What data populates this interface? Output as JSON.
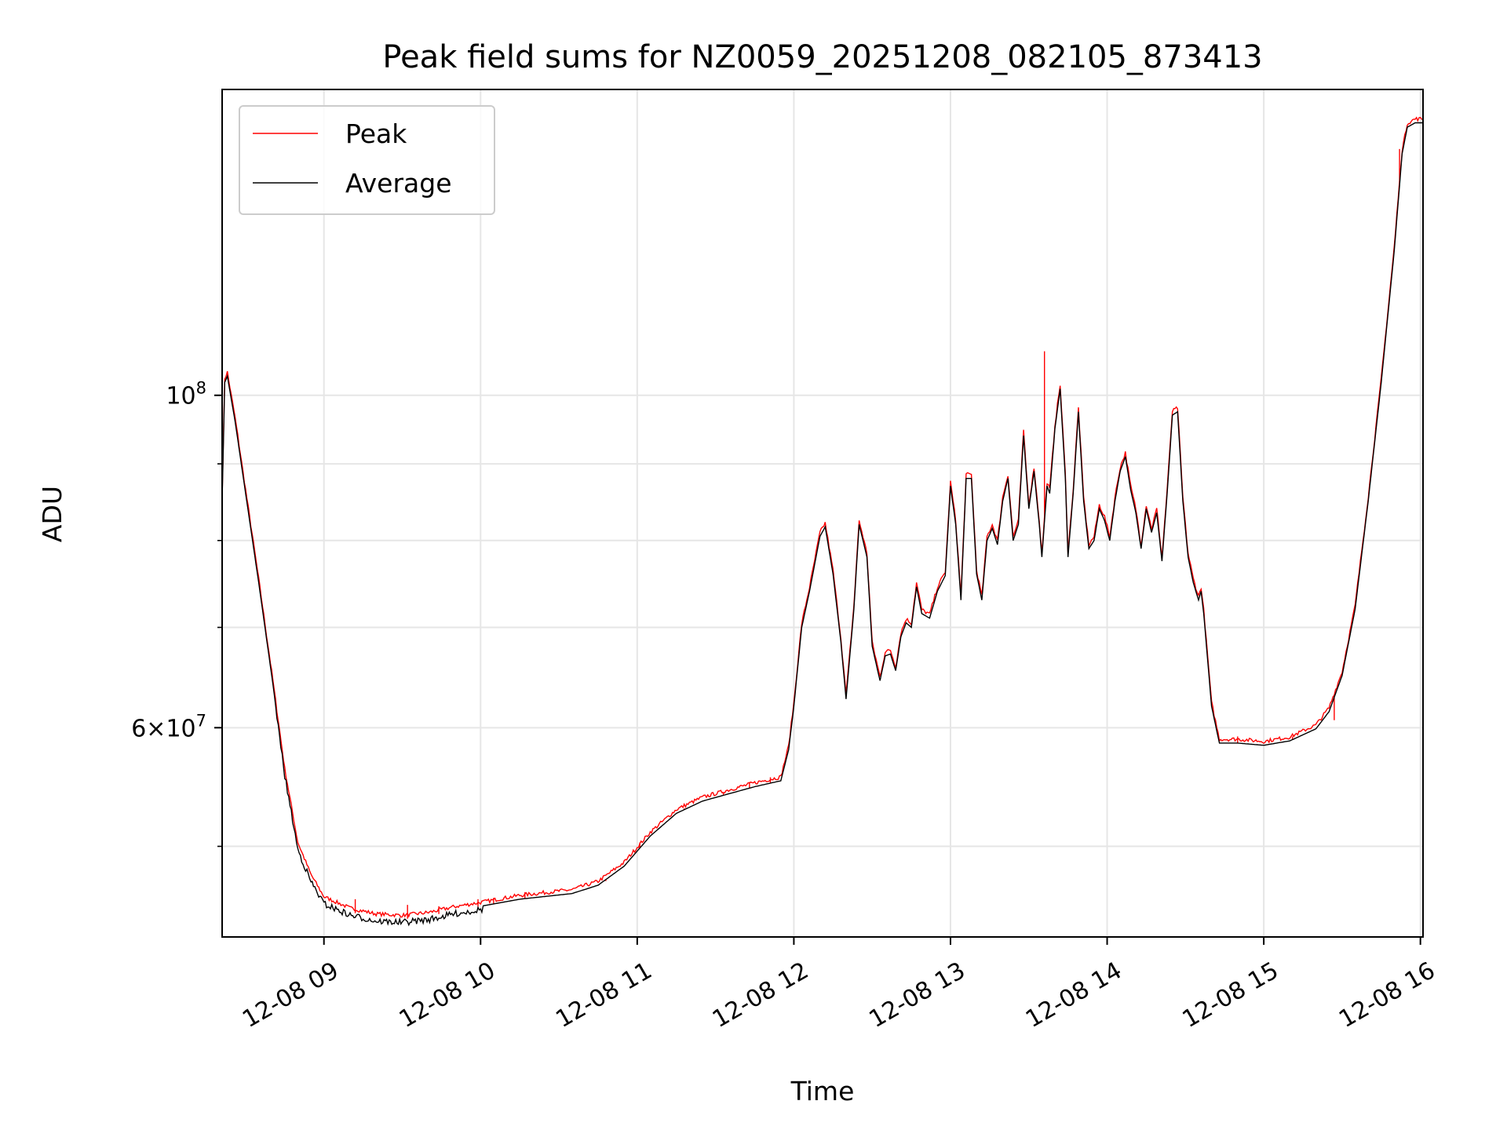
{
  "chart_data": {
    "type": "line",
    "title": "Peak field sums for NZ0059_20251208_082105_873413",
    "xlabel": "Time",
    "ylabel": "ADU",
    "x_range": [
      "12-08 08:21",
      "12-08 16:01"
    ],
    "ylim": [
      43500000,
      160000000
    ],
    "yscale": "log",
    "grid": true,
    "legend_position": "top-left",
    "x_ticks": [
      "12-08 09",
      "12-08 10",
      "12-08 11",
      "12-08 12",
      "12-08 13",
      "12-08 14",
      "12-08 15",
      "12-08 16"
    ],
    "y_major_ticks": [
      {
        "value": 100000000,
        "mantissa": "",
        "base": "10",
        "exp": "8"
      },
      {
        "value": 60000000,
        "mantissa": "6",
        "base": "10",
        "exp": "7"
      }
    ],
    "y_minor_ticks": [
      50000000,
      70000000,
      80000000,
      90000000
    ],
    "series": [
      {
        "name": "Peak",
        "color": "#ff0000",
        "spikes": [
          [
            "12-08 09:12",
            46100000
          ],
          [
            "12-08 09:32",
            45700000
          ],
          [
            "12-08 09:44",
            45600000
          ],
          [
            "12-08 09:59",
            46100000
          ],
          [
            "12-08 10:05",
            46200000
          ],
          [
            "12-08 10:17",
            46600000
          ],
          [
            "12-08 10:37",
            46600000
          ],
          [
            "12-08 10:48",
            47400000
          ],
          [
            "12-08 11:01",
            50300000
          ],
          [
            "12-08 11:08",
            51400000
          ],
          [
            "12-08 11:18",
            53000000
          ],
          [
            "12-08 11:33",
            54300000
          ],
          [
            "12-08 11:43",
            55200000
          ],
          [
            "12-08 11:51",
            55600000
          ],
          [
            "12-08 13:36",
            107000000
          ],
          [
            "12-08 14:50",
            59200000
          ],
          [
            "12-08 15:11",
            59200000
          ],
          [
            "12-08 15:27",
            60700000
          ],
          [
            "12-08 15:52",
            146000000
          ]
        ]
      },
      {
        "name": "Average",
        "color": "#000000",
        "points": [
          [
            "12-08 08:21",
            85000000
          ],
          [
            "12-08 08:22",
            102000000
          ],
          [
            "12-08 08:23",
            103000000
          ],
          [
            "12-08 08:26",
            96000000
          ],
          [
            "12-08 08:30",
            86000000
          ],
          [
            "12-08 08:35",
            75000000
          ],
          [
            "12-08 08:40",
            65000000
          ],
          [
            "12-08 08:45",
            56000000
          ],
          [
            "12-08 08:50",
            50000000
          ],
          [
            "12-08 08:55",
            47600000
          ],
          [
            "12-08 09:00",
            46000000
          ],
          [
            "12-08 09:10",
            45200000
          ],
          [
            "12-08 09:20",
            44800000
          ],
          [
            "12-08 09:30",
            44700000
          ],
          [
            "12-08 09:40",
            44900000
          ],
          [
            "12-08 09:50",
            45300000
          ],
          [
            "12-08 10:00",
            45600000
          ],
          [
            "12-08 10:15",
            46100000
          ],
          [
            "12-08 10:35",
            46500000
          ],
          [
            "12-08 10:45",
            47100000
          ],
          [
            "12-08 10:55",
            48500000
          ],
          [
            "12-08 11:05",
            50800000
          ],
          [
            "12-08 11:15",
            52600000
          ],
          [
            "12-08 11:25",
            53600000
          ],
          [
            "12-08 11:35",
            54200000
          ],
          [
            "12-08 11:45",
            54800000
          ],
          [
            "12-08 11:55",
            55300000
          ],
          [
            "12-08 11:58",
            58000000
          ],
          [
            "12-08 12:00",
            62000000
          ],
          [
            "12-08 12:03",
            70000000
          ],
          [
            "12-08 12:06",
            74000000
          ],
          [
            "12-08 12:10",
            80500000
          ],
          [
            "12-08 12:12",
            81700000
          ],
          [
            "12-08 12:15",
            76000000
          ],
          [
            "12-08 12:18",
            68500000
          ],
          [
            "12-08 12:20",
            62700000
          ],
          [
            "12-08 12:23",
            72000000
          ],
          [
            "12-08 12:25",
            82000000
          ],
          [
            "12-08 12:28",
            78000000
          ],
          [
            "12-08 12:30",
            68000000
          ],
          [
            "12-08 12:33",
            64500000
          ],
          [
            "12-08 12:35",
            67000000
          ],
          [
            "12-08 12:37",
            67200000
          ],
          [
            "12-08 12:39",
            65500000
          ],
          [
            "12-08 12:41",
            69000000
          ],
          [
            "12-08 12:43",
            70500000
          ],
          [
            "12-08 12:45",
            70000000
          ],
          [
            "12-08 12:47",
            74500000
          ],
          [
            "12-08 12:49",
            71500000
          ],
          [
            "12-08 12:52",
            71000000
          ],
          [
            "12-08 12:55",
            74000000
          ],
          [
            "12-08 12:58",
            75800000
          ],
          [
            "12-08 13:00",
            87000000
          ],
          [
            "12-08 13:02",
            82000000
          ],
          [
            "12-08 13:04",
            73000000
          ],
          [
            "12-08 13:06",
            88000000
          ],
          [
            "12-08 13:08",
            88000000
          ],
          [
            "12-08 13:10",
            76000000
          ],
          [
            "12-08 13:12",
            73000000
          ],
          [
            "12-08 13:14",
            80000000
          ],
          [
            "12-08 13:16",
            81500000
          ],
          [
            "12-08 13:18",
            79500000
          ],
          [
            "12-08 13:20",
            85000000
          ],
          [
            "12-08 13:22",
            88000000
          ],
          [
            "12-08 13:24",
            80000000
          ],
          [
            "12-08 13:26",
            82000000
          ],
          [
            "12-08 13:28",
            94000000
          ],
          [
            "12-08 13:30",
            84000000
          ],
          [
            "12-08 13:32",
            89000000
          ],
          [
            "12-08 13:34",
            82000000
          ],
          [
            "12-08 13:35",
            78000000
          ],
          [
            "12-08 13:37",
            87000000
          ],
          [
            "12-08 13:38",
            86000000
          ],
          [
            "12-08 13:40",
            95000000
          ],
          [
            "12-08 13:42",
            101000000
          ],
          [
            "12-08 13:44",
            88000000
          ],
          [
            "12-08 13:45",
            78000000
          ],
          [
            "12-08 13:47",
            86000000
          ],
          [
            "12-08 13:49",
            97500000
          ],
          [
            "12-08 13:51",
            85000000
          ],
          [
            "12-08 13:53",
            79000000
          ],
          [
            "12-08 13:55",
            80000000
          ],
          [
            "12-08 13:57",
            84000000
          ],
          [
            "12-08 13:59",
            82500000
          ],
          [
            "12-08 14:01",
            80000000
          ],
          [
            "12-08 14:03",
            85000000
          ],
          [
            "12-08 14:05",
            89000000
          ],
          [
            "12-08 14:07",
            91000000
          ],
          [
            "12-08 14:09",
            86500000
          ],
          [
            "12-08 14:11",
            83500000
          ],
          [
            "12-08 14:13",
            79000000
          ],
          [
            "12-08 14:15",
            84000000
          ],
          [
            "12-08 14:17",
            81000000
          ],
          [
            "12-08 14:19",
            83500000
          ],
          [
            "12-08 14:21",
            77500000
          ],
          [
            "12-08 14:23",
            86000000
          ],
          [
            "12-08 14:25",
            97000000
          ],
          [
            "12-08 14:27",
            97500000
          ],
          [
            "12-08 14:29",
            85000000
          ],
          [
            "12-08 14:31",
            78000000
          ],
          [
            "12-08 14:33",
            75000000
          ],
          [
            "12-08 14:35",
            73000000
          ],
          [
            "12-08 14:36",
            74000000
          ],
          [
            "12-08 14:37",
            71500000
          ],
          [
            "12-08 14:40",
            62000000
          ],
          [
            "12-08 14:43",
            58600000
          ],
          [
            "12-08 14:50",
            58600000
          ],
          [
            "12-08 15:00",
            58400000
          ],
          [
            "12-08 15:10",
            58800000
          ],
          [
            "12-08 15:20",
            59900000
          ],
          [
            "12-08 15:25",
            61500000
          ],
          [
            "12-08 15:30",
            65000000
          ],
          [
            "12-08 15:35",
            72000000
          ],
          [
            "12-08 15:40",
            85000000
          ],
          [
            "12-08 15:45",
            102000000
          ],
          [
            "12-08 15:50",
            125000000
          ],
          [
            "12-08 15:53",
            145000000
          ],
          [
            "12-08 15:55",
            151000000
          ],
          [
            "12-08 15:58",
            152000000
          ],
          [
            "12-08 16:01",
            152000000
          ]
        ]
      }
    ]
  }
}
